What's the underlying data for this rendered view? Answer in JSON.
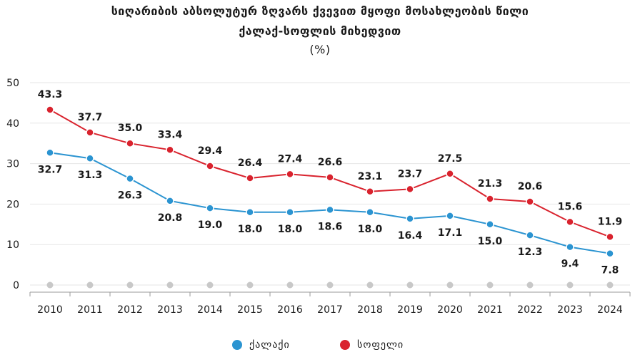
{
  "title_line1": "სიღარიბის აბსოლუტურ ზღვარს ქვევით მყოფი მოსახლეობის წილი",
  "title_line2": "ქალაქ-სოფლის მიხედვით",
  "unit": "(%)",
  "colors": {
    "urban": "#2b94d1",
    "rural": "#d9232e",
    "zero": "#c8c8c8",
    "grid": "#e6e6e6",
    "axis": "#9a9a9a"
  },
  "chart_data": {
    "type": "line",
    "title": "სიღარიბის აბსოლუტურ ზღვარს ქვევით მყოფი მოსახლეობის წილი ქალაქ-სოფლის მიხედვით",
    "ylabel": "(%)",
    "xlabel": "",
    "ylim": [
      0,
      50
    ],
    "yticks": [
      0,
      10,
      20,
      30,
      40,
      50
    ],
    "grid": true,
    "legend": "bottom",
    "categories": [
      "2010",
      "2011",
      "2012",
      "2013",
      "2014",
      "2015",
      "2016",
      "2017",
      "2018",
      "2019",
      "2020",
      "2021",
      "2022",
      "2023",
      "2024"
    ],
    "series": [
      {
        "name": "ქალაქი",
        "color": "#2b94d1",
        "values": [
          32.7,
          31.3,
          26.3,
          20.8,
          19.0,
          18.0,
          18.0,
          18.6,
          18.0,
          16.4,
          17.1,
          15.0,
          12.3,
          9.4,
          7.8
        ],
        "labels": [
          "32.7",
          "31.3",
          "26.3",
          "20.8",
          "19.0",
          "18.0",
          "18.0",
          "18.6",
          "18.0",
          "16.4",
          "17.1",
          "15.0",
          "12.3",
          "9.4",
          "7.8"
        ]
      },
      {
        "name": "სოფელი",
        "color": "#d9232e",
        "values": [
          43.3,
          37.7,
          35.0,
          33.4,
          29.4,
          26.4,
          27.4,
          26.6,
          23.1,
          23.7,
          27.5,
          21.3,
          20.6,
          15.6,
          11.9
        ],
        "labels": [
          "43.3",
          "37.7",
          "35.0",
          "33.4",
          "29.4",
          "26.4",
          "27.4",
          "26.6",
          "23.1",
          "23.7",
          "27.5",
          "21.3",
          "20.6",
          "15.6",
          "11.9"
        ]
      }
    ]
  },
  "legend": {
    "urban": "ქალაქი",
    "rural": "სოფელი"
  }
}
